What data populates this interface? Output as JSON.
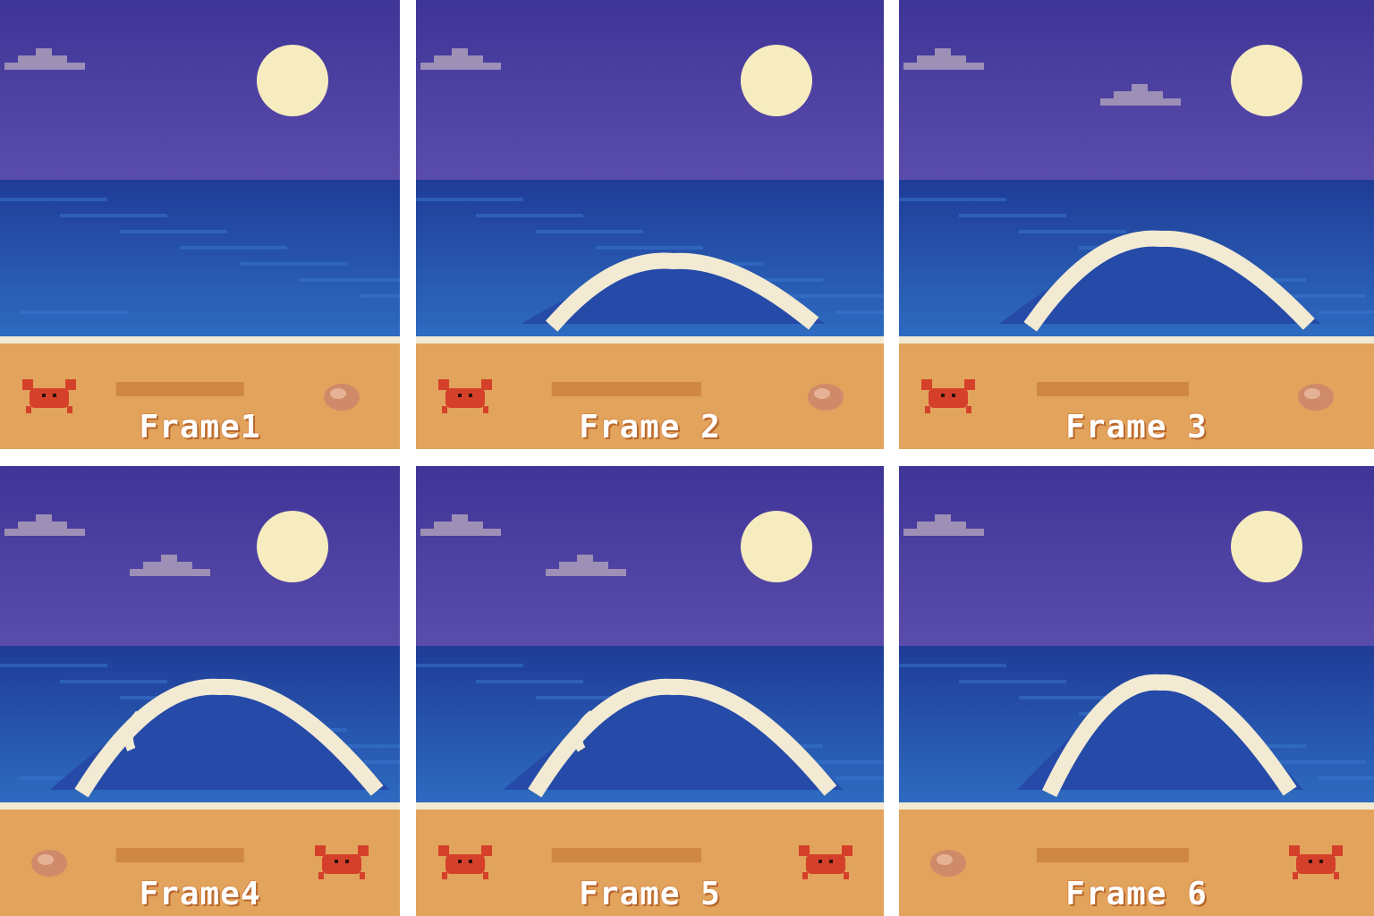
{
  "frames": [
    {
      "label": "Frame1",
      "wave": null,
      "clouds": 1,
      "props": [
        "crab",
        "shell"
      ]
    },
    {
      "label": "Frame 2",
      "wave": "small",
      "clouds": 1,
      "props": [
        "crab",
        "shell"
      ]
    },
    {
      "label": "Frame 3",
      "wave": "medium",
      "clouds": 2,
      "props": [
        "crab",
        "shell"
      ]
    },
    {
      "label": "Frame4",
      "wave": "curl",
      "clouds": 2,
      "props": [
        "shell",
        "crab"
      ]
    },
    {
      "label": "Frame 5",
      "wave": "curl-large",
      "clouds": 2,
      "props": [
        "crab",
        "crab"
      ]
    },
    {
      "label": "Frame 6",
      "wave": "peak",
      "clouds": 1,
      "props": [
        "shell",
        "crab"
      ]
    }
  ],
  "colors": {
    "sky_top": "#3f3597",
    "sky_bottom": "#5a4cab",
    "sea_dark": "#1f3c97",
    "sea_light": "#2f6fc4",
    "foam": "#f2ead2",
    "sand": "#e2a35c",
    "sand_shadow": "#c77a3c",
    "moon": "#f6ecc0",
    "cloud": "#9d8fb6",
    "crab": "#d4402a",
    "shell": "#cf8a6a"
  }
}
